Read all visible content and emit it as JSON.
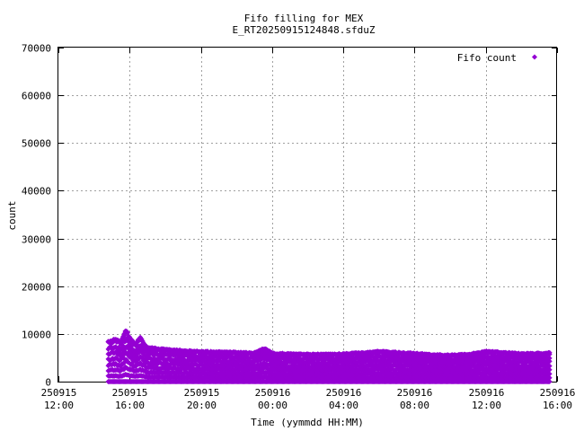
{
  "chart_data": {
    "type": "scatter",
    "title": [
      "Fifo filling for MEX",
      "E_RT20250915124848.sfduZ"
    ],
    "xlabel": "Time (yymmdd HH:MM)",
    "ylabel": "count",
    "x_range_hours": [
      12,
      40
    ],
    "ylim": [
      0,
      70000
    ],
    "grid": true,
    "legend_position": "top-right",
    "x_ticks": [
      {
        "h": 12,
        "date": "250915",
        "time": "12:00"
      },
      {
        "h": 16,
        "date": "250915",
        "time": "16:00"
      },
      {
        "h": 20,
        "date": "250915",
        "time": "20:00"
      },
      {
        "h": 24,
        "date": "250916",
        "time": "00:00"
      },
      {
        "h": 28,
        "date": "250916",
        "time": "04:00"
      },
      {
        "h": 32,
        "date": "250916",
        "time": "08:00"
      },
      {
        "h": 36,
        "date": "250916",
        "time": "12:00"
      },
      {
        "h": 40,
        "date": "250916",
        "time": "16:00"
      }
    ],
    "y_ticks": [
      0,
      10000,
      20000,
      30000,
      40000,
      50000,
      60000,
      70000
    ],
    "series": [
      {
        "name": "Fifo count",
        "color": "#9400d3",
        "marker": "diamond",
        "x_start_hours": 14.8,
        "x_end_hours": 39.6,
        "points_max": [
          [
            14.8,
            8500
          ],
          [
            15.2,
            9000
          ],
          [
            15.5,
            8300
          ],
          [
            15.8,
            11000
          ],
          [
            16.0,
            9400
          ],
          [
            16.3,
            8000
          ],
          [
            16.6,
            9300
          ],
          [
            17.0,
            7200
          ],
          [
            18.0,
            6900
          ],
          [
            19.0,
            6600
          ],
          [
            20.0,
            6400
          ],
          [
            21.0,
            6300
          ],
          [
            22.0,
            6200
          ],
          [
            23.0,
            6100
          ],
          [
            23.6,
            7100
          ],
          [
            24.0,
            6000
          ],
          [
            25.0,
            5900
          ],
          [
            26.0,
            5800
          ],
          [
            27.0,
            5800
          ],
          [
            28.0,
            5900
          ],
          [
            29.0,
            6100
          ],
          [
            30.0,
            6400
          ],
          [
            31.0,
            6200
          ],
          [
            32.0,
            6000
          ],
          [
            33.0,
            5700
          ],
          [
            34.0,
            5600
          ],
          [
            35.0,
            5800
          ],
          [
            36.0,
            6400
          ],
          [
            37.0,
            6200
          ],
          [
            38.0,
            5900
          ],
          [
            39.0,
            6000
          ],
          [
            39.6,
            6100
          ]
        ]
      }
    ]
  }
}
